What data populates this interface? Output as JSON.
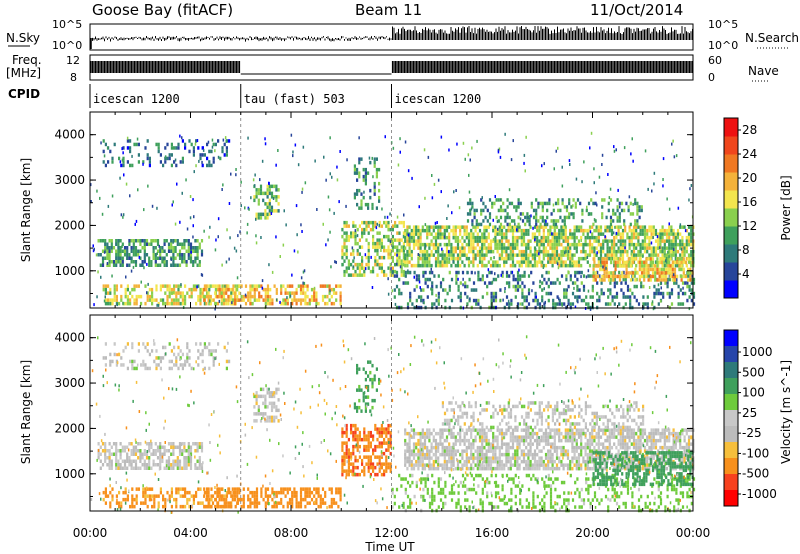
{
  "header": {
    "station": "Goose Bay (fitACF)",
    "beam": "Beam 11",
    "date": "11/Oct/2014"
  },
  "params": {
    "nsky_label": "N.Sky",
    "nsearch_label": "N.Search",
    "freq_label_1": "Freq.",
    "freq_label_2": "[MHz]",
    "nave_label": "Nave",
    "cpid_label": "CPID",
    "nsky_ticks": [
      "10^5",
      "10^0"
    ],
    "nsearch_ticks": [
      "10^5",
      "10^0"
    ],
    "freq_ticks": [
      "12",
      "8"
    ],
    "nave_ticks": [
      "60",
      "0"
    ]
  },
  "cpid_segments": [
    {
      "label": "icescan 1200",
      "start_hour": 0,
      "end_hour": 6
    },
    {
      "label": "tau (fast) 503",
      "start_hour": 6,
      "end_hour": 12
    },
    {
      "label": "icescan 1200",
      "start_hour": 12,
      "end_hour": 24
    }
  ],
  "colors": {
    "power_scale": [
      "#0000ff",
      "#27459a",
      "#2e7a7a",
      "#3fa05c",
      "#8ad04e",
      "#f3e54e",
      "#f4b23a",
      "#f07822",
      "#f0461c",
      "#ee1111"
    ],
    "velocity_scale": [
      "#ff0000",
      "#f7411e",
      "#f7901c",
      "#f6bf3c",
      "#bcbcbc",
      "#c8c8c8",
      "#6ecb3c",
      "#3fa05c",
      "#2e7a7a",
      "#2745aa",
      "#0000ff"
    ]
  },
  "chart_data": [
    {
      "type": "heatmap",
      "name": "power",
      "ylabel": "Slant Range [km]",
      "xlim": [
        0,
        24
      ],
      "ylim": [
        180,
        4500
      ],
      "yticks": [
        "1000",
        "2000",
        "3000",
        "4000"
      ],
      "colorbar": {
        "label": "Power [dB]",
        "ticks": [
          "4",
          "8",
          "12",
          "16",
          "20",
          "24",
          "28"
        ],
        "range": [
          0,
          30
        ]
      },
      "regions": [
        {
          "t0": 0.3,
          "t1": 4.5,
          "r0": 1100,
          "r1": 1700,
          "value": 10,
          "density": 0.6
        },
        {
          "t0": 0.5,
          "t1": 6.0,
          "r0": 250,
          "r1": 700,
          "value": 16,
          "density": 0.5
        },
        {
          "t0": 4.5,
          "t1": 10.0,
          "r0": 300,
          "r1": 700,
          "value": 18,
          "density": 0.55
        },
        {
          "t0": 0.5,
          "t1": 5.5,
          "r0": 3300,
          "r1": 3900,
          "value": 6,
          "density": 0.25
        },
        {
          "t0": 6.5,
          "t1": 7.5,
          "r0": 2200,
          "r1": 2900,
          "value": 12,
          "density": 0.5
        },
        {
          "t0": 10.0,
          "t1": 12.5,
          "r0": 900,
          "r1": 2100,
          "value": 14,
          "density": 0.5
        },
        {
          "t0": 10.5,
          "t1": 11.5,
          "r0": 2400,
          "r1": 3500,
          "value": 10,
          "density": 0.3
        },
        {
          "t0": 12.5,
          "t1": 24.0,
          "r0": 1100,
          "r1": 2000,
          "value": 14,
          "density": 0.7
        },
        {
          "t0": 15.0,
          "t1": 22.0,
          "r0": 2000,
          "r1": 2600,
          "value": 10,
          "density": 0.35
        },
        {
          "t0": 12.0,
          "t1": 24.0,
          "r0": 180,
          "r1": 1000,
          "value": 8,
          "density": 0.3
        },
        {
          "t0": 20.0,
          "t1": 24.0,
          "r0": 800,
          "r1": 1300,
          "value": 18,
          "density": 0.6
        }
      ]
    },
    {
      "type": "heatmap",
      "name": "velocity",
      "xlabel": "Time UT",
      "ylabel": "Slant Range [km]",
      "xlim": [
        0,
        24
      ],
      "ylim": [
        180,
        4500
      ],
      "xticks": [
        "00:00",
        "04:00",
        "08:00",
        "12:00",
        "16:00",
        "20:00",
        "00:00"
      ],
      "yticks": [
        "1000",
        "2000",
        "3000",
        "4000"
      ],
      "colorbar": {
        "label": "Velocity [m s^-1]",
        "ticks": [
          "1000",
          "500",
          "100",
          "25",
          "-25",
          "-100",
          "-500",
          "-1000"
        ]
      },
      "regions": [
        {
          "t0": 0.3,
          "t1": 4.5,
          "r0": 1100,
          "r1": 1700,
          "value": 0,
          "density": 0.6
        },
        {
          "t0": 0.5,
          "t1": 6.0,
          "r0": 250,
          "r1": 700,
          "value": -150,
          "density": 0.45
        },
        {
          "t0": 4.5,
          "t1": 10.0,
          "r0": 300,
          "r1": 700,
          "value": -250,
          "density": 0.55
        },
        {
          "t0": 0.5,
          "t1": 5.5,
          "r0": 3300,
          "r1": 3900,
          "value": 0,
          "density": 0.25
        },
        {
          "t0": 6.5,
          "t1": 7.5,
          "r0": 2200,
          "r1": 2900,
          "value": 0,
          "density": 0.5
        },
        {
          "t0": 10.0,
          "t1": 12.0,
          "r0": 1000,
          "r1": 2100,
          "value": -400,
          "density": 0.55
        },
        {
          "t0": 10.5,
          "t1": 11.5,
          "r0": 2400,
          "r1": 3500,
          "value": 150,
          "density": 0.3
        },
        {
          "t0": 12.5,
          "t1": 24.0,
          "r0": 1100,
          "r1": 2000,
          "value": 0,
          "density": 0.7
        },
        {
          "t0": 14.0,
          "t1": 22.0,
          "r0": 2000,
          "r1": 2600,
          "value": 0,
          "density": 0.4
        },
        {
          "t0": 12.0,
          "t1": 24.0,
          "r0": 180,
          "r1": 1000,
          "value": 50,
          "density": 0.25
        },
        {
          "t0": 20.0,
          "t1": 24.0,
          "r0": 800,
          "r1": 1500,
          "value": 300,
          "density": 0.55
        }
      ]
    }
  ]
}
